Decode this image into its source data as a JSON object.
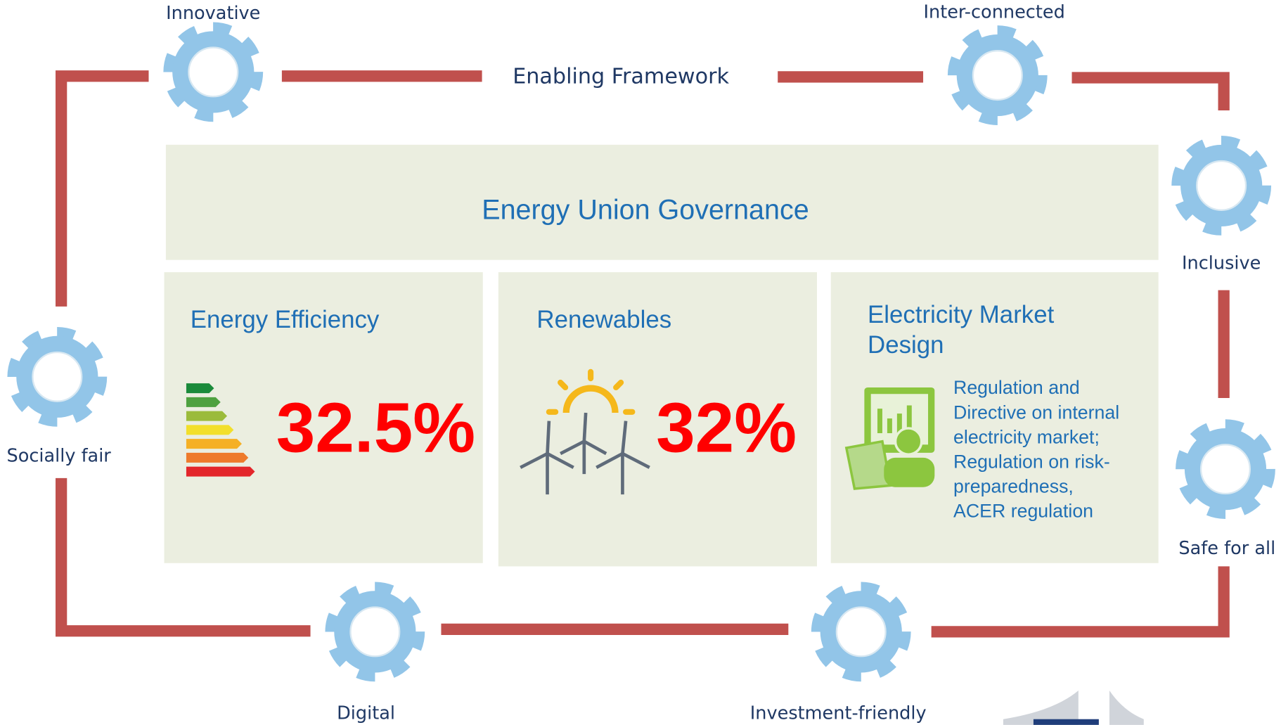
{
  "frame": {
    "title": "Enabling Framework",
    "gears": [
      "Innovative",
      "Inter-connected",
      "Inclusive",
      "Safe for all",
      "Investment-friendly",
      "Digital",
      "Socially fair"
    ]
  },
  "governance": {
    "title": "Energy Union Governance"
  },
  "boxes": [
    {
      "title": "Energy Efficiency",
      "target": "32.5%"
    },
    {
      "title": "Renewables",
      "target": "32%"
    },
    {
      "title": [
        "Electricity Market",
        "Design"
      ],
      "text": [
        "Regulation and",
        "Directive on internal",
        "electricity market;",
        "Regulation on risk-",
        "preparedness,",
        "ACER regulation"
      ]
    }
  ]
}
